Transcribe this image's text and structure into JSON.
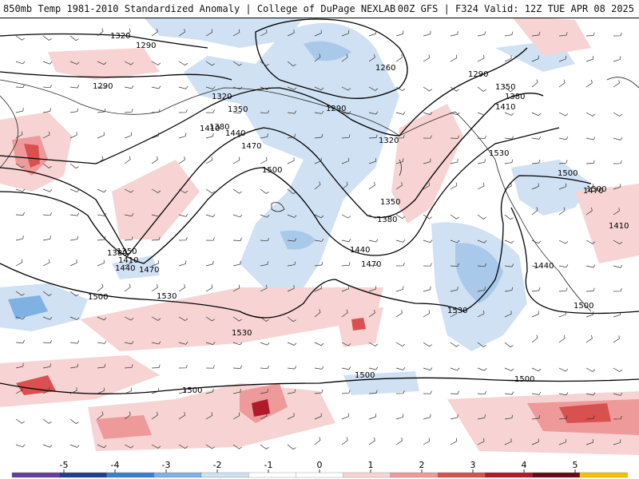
{
  "title": {
    "left": "850mb Temp 1981-2010 Standardized Anomaly | College of DuPage NEXLAB",
    "right": "00Z GFS | F324 Valid: 12Z TUE APR 08 2025"
  },
  "contour_labels": [
    "1320",
    "1290",
    "1260",
    "1290",
    "1350",
    "1380",
    "1410",
    "1290",
    "1320",
    "1350",
    "1380",
    "1410",
    "1440",
    "1470",
    "1500",
    "1530",
    "1350",
    "1380",
    "1410",
    "1440",
    "1470",
    "1500",
    "1530",
    "1530",
    "1290",
    "1320",
    "1350",
    "1380",
    "1440",
    "1470",
    "1500",
    "1530",
    "1500",
    "1470",
    "1410",
    "1440",
    "1500",
    "1500",
    "1500",
    "1500"
  ],
  "colorbar": {
    "ticks": [
      "-5",
      "-4",
      "-3",
      "-2",
      "-1",
      "0",
      "1",
      "2",
      "3",
      "4",
      "5"
    ],
    "colors": {
      "neg5": "#6a3d9a",
      "neg4": "#1f3f8f",
      "neg3": "#3a7fd0",
      "neg2": "#7fb1e3",
      "neg1": "#cfe1f3",
      "zero": "#ffffff",
      "pos1": "#f7d3d3",
      "pos2": "#ee9a9a",
      "pos3": "#d95050",
      "pos4": "#b01a2a",
      "pos5": "#6b0a14",
      "pos6": "#f2c200"
    }
  }
}
